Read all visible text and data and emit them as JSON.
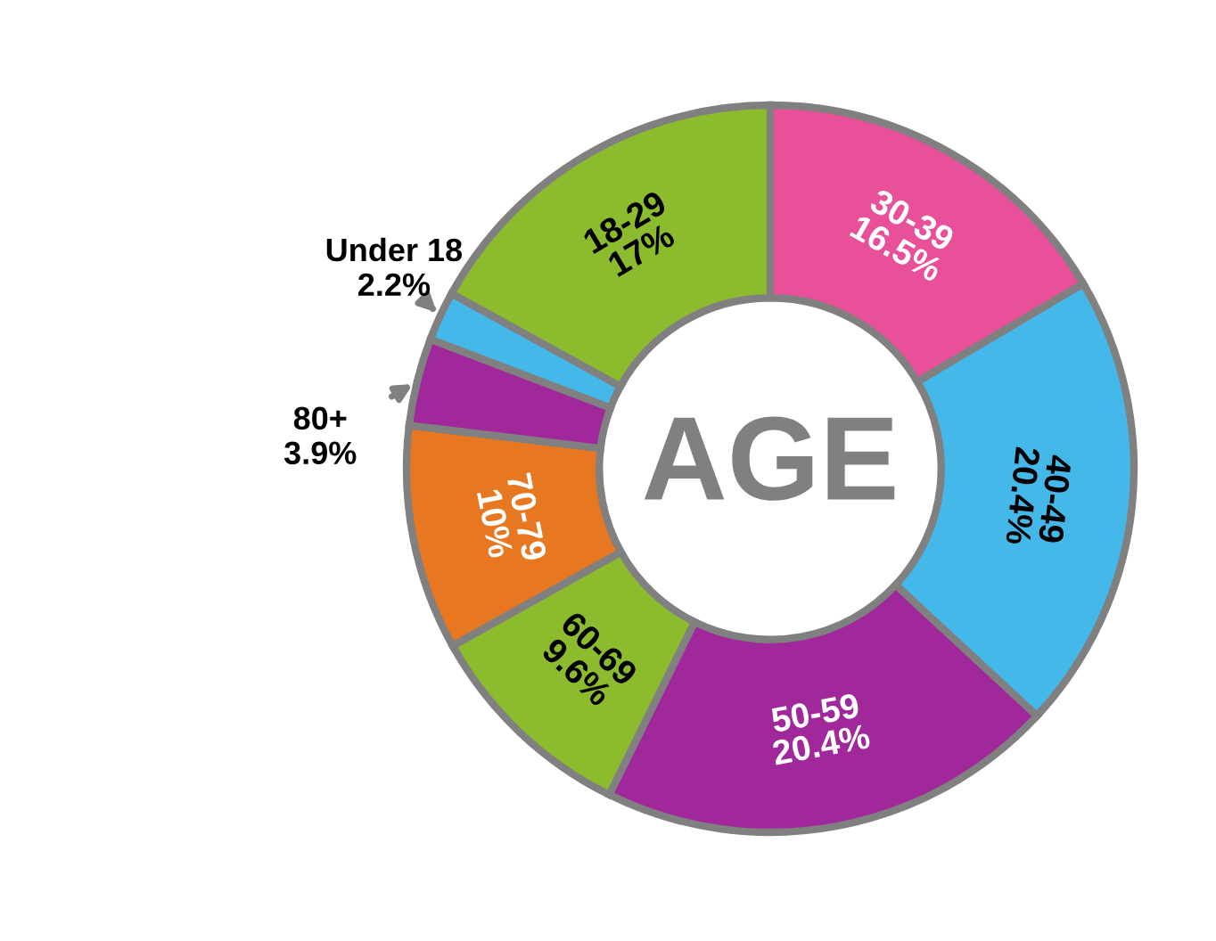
{
  "chart_data": {
    "type": "donut",
    "title": "AGE",
    "categories": [
      "30-39",
      "40-49",
      "50-59",
      "60-69",
      "70-79",
      "80+",
      "Under 18",
      "18-29"
    ],
    "values": [
      16.5,
      20.4,
      20.4,
      9.6,
      10,
      3.9,
      2.2,
      17
    ],
    "colors": [
      "#e8509a",
      "#45b8ea",
      "#a0289a",
      "#8dbb2e",
      "#e87722",
      "#a0289a",
      "#45b8ea",
      "#8dbb2e"
    ],
    "value_labels": [
      "16.5%",
      "20.4%",
      "20.4%",
      "9.6%",
      "10%",
      "3.9%",
      "2.2%",
      "17%"
    ],
    "legend": false
  }
}
